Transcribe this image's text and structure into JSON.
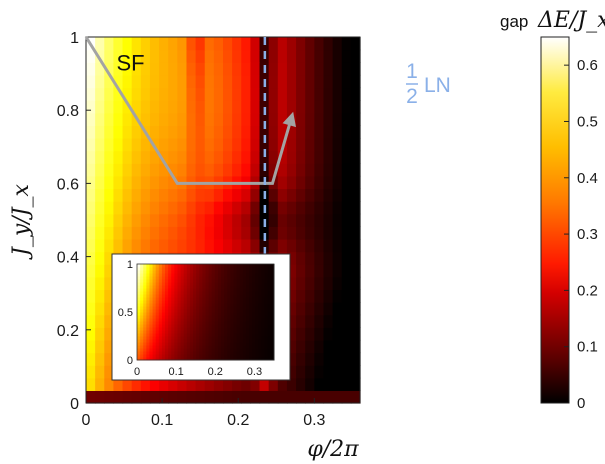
{
  "chart_data": {
    "type": "heatmap",
    "xlabel": "φ/2π",
    "ylabel": "J_y/J_x",
    "xlim": [
      0,
      0.36
    ],
    "ylim": [
      0,
      1
    ],
    "x_ticks": [
      "0",
      "0.1",
      "0.2",
      "0.3"
    ],
    "y_ticks": [
      "0",
      "0.2",
      "0.4",
      "0.6",
      "0.8",
      "1"
    ],
    "colorbar": {
      "title_prefix": "gap",
      "title_math": "ΔE/J_x",
      "range": [
        0,
        0.65
      ],
      "ticks": [
        "0",
        "0.1",
        "0.2",
        "0.3",
        "0.4",
        "0.5",
        "0.6"
      ],
      "colormap": "hot"
    },
    "grid": {
      "nx": 30,
      "ny": 29
    },
    "features": {
      "trough_center_x": 0.235,
      "trough_min_y": 0.45,
      "side_trough_x": 0.145,
      "bottom_dark_row_y": [
        0,
        0.05
      ]
    },
    "phase_boundary": [
      [
        0,
        1
      ],
      [
        0.12,
        0.6
      ],
      [
        0.245,
        0.6
      ],
      [
        0.27,
        0.78
      ]
    ],
    "dashed_line_x": 0.235,
    "dashed_line_y": [
      0.4,
      1.0
    ],
    "annotations": [
      {
        "text": "SF",
        "x": 0.04,
        "y": 0.93
      },
      {
        "text": "LN",
        "prefix": "1/2",
        "x": 0.275,
        "y": 0.88
      }
    ],
    "inset": {
      "x_ticks": [
        "0",
        "0.1",
        "0.2",
        "0.3"
      ],
      "y_ticks": [
        "0",
        "0.5",
        "1"
      ],
      "xlim": [
        0,
        0.35
      ],
      "ylim": [
        0,
        1
      ]
    }
  }
}
